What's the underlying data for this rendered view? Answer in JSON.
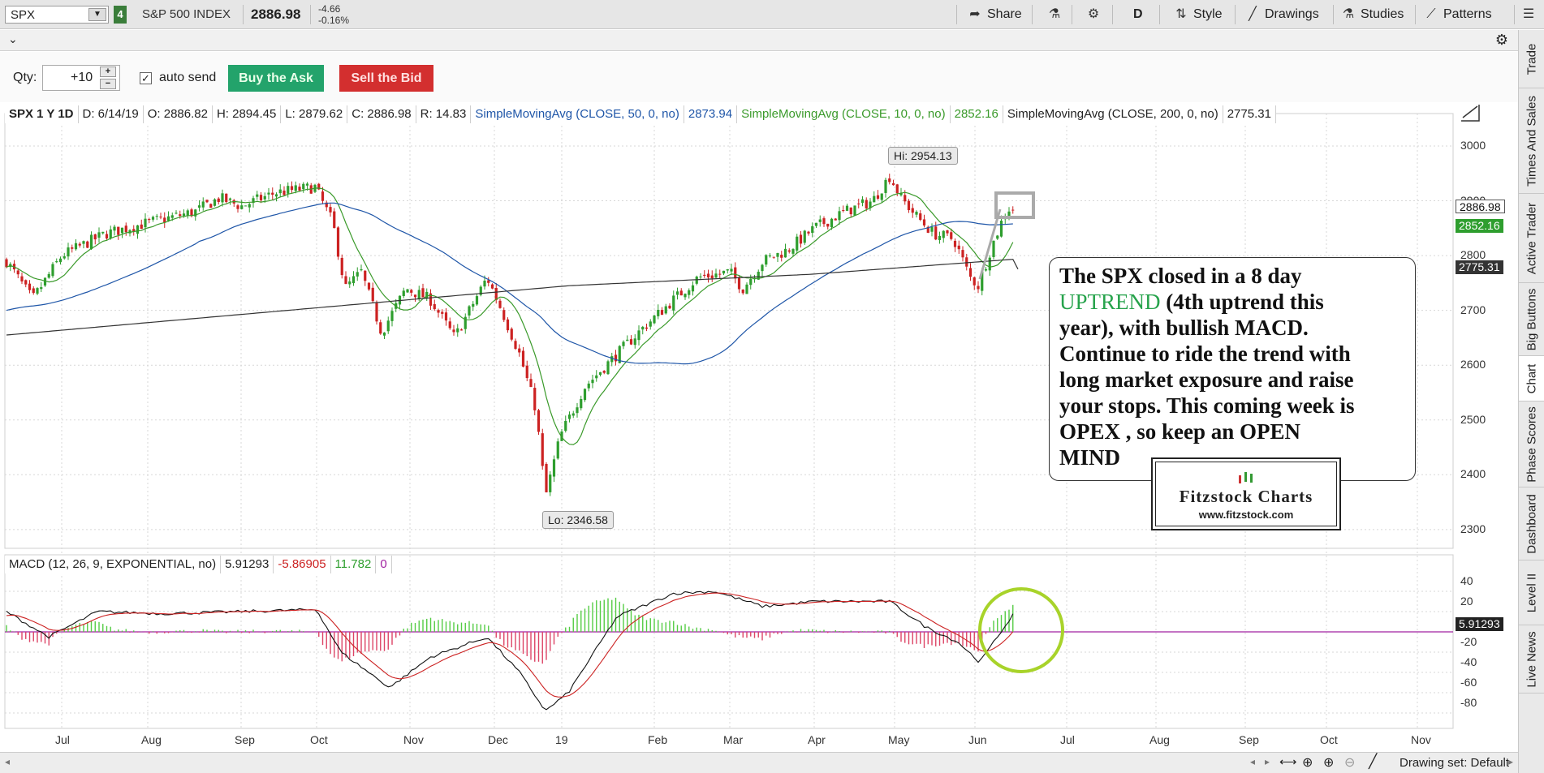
{
  "toolbar": {
    "symbol": "SPX",
    "link_number": "4",
    "instrument_name": "S&P 500 INDEX",
    "last_price": "2886.98",
    "net_change": "-4.66",
    "pct_change": "-0.16%",
    "share_label": "Share",
    "timeframe_label": "D",
    "style_label": "Style",
    "drawings_label": "Drawings",
    "studies_label": "Studies",
    "patterns_label": "Patterns"
  },
  "order": {
    "qty_label": "Qty:",
    "qty_value": "+10",
    "auto_send_label": "auto send",
    "buy_label": "Buy the Ask",
    "sell_label": "Sell the Bid"
  },
  "header": {
    "symbol_period": "SPX 1 Y 1D",
    "date": "D: 6/14/19",
    "open": "O: 2886.82",
    "high": "H: 2894.45",
    "low": "L: 2879.62",
    "close": "C: 2886.98",
    "range": "R: 14.83",
    "sma50_label": "SimpleMovingAvg (CLOSE, 50, 0, no)",
    "sma50_value": "2873.94",
    "sma10_label": "SimpleMovingAvg (CLOSE, 10, 0, no)",
    "sma10_value": "2852.16",
    "sma200_label": "SimpleMovingAvg (CLOSE, 200, 0, no)",
    "sma200_value": "2775.31"
  },
  "macd_header": {
    "label": "MACD (12, 26, 9, EXPONENTIAL, no)",
    "value": "5.91293",
    "avg": "-5.86905",
    "diff": "11.782",
    "zero": "0"
  },
  "price_tags": {
    "close": "2886.98",
    "sma10": "2852.16",
    "sma200": "2775.31",
    "macd": "5.91293"
  },
  "callouts": {
    "high": "Hi: 2954.13",
    "low": "Lo: 2346.58"
  },
  "note": {
    "line1": "The SPX closed in a 8 day",
    "uptrend": "UPTREND",
    "line2_rest": " (4th uptrend this",
    "line3": "year), with bullish MACD.",
    "line4": "Continue to ride the trend with",
    "line5": "long market exposure and raise",
    "line6": "your stops.  This coming week is",
    "line7": "OPEX , so keep an OPEN",
    "line8": "MIND"
  },
  "logo": {
    "title": "Fitzstock Charts",
    "url": "www.fitzstock.com"
  },
  "price_axis": [
    "3000",
    "2900",
    "2800",
    "2700",
    "2600",
    "2500",
    "2400",
    "2300"
  ],
  "macd_axis": [
    "40",
    "20",
    "0",
    "-20",
    "-40",
    "-60",
    "-80"
  ],
  "months": [
    "Jul",
    "Aug",
    "Sep",
    "Oct",
    "Nov",
    "Dec",
    "19",
    "Feb",
    "Mar",
    "Apr",
    "May",
    "Jun",
    "Jul",
    "Aug",
    "Sep",
    "Oct",
    "Nov"
  ],
  "side_tabs": [
    "Trade",
    "Times And Sales",
    "Active Trader",
    "Big Buttons",
    "Chart",
    "Phase Scores",
    "Dashboard",
    "Level II",
    "Live News"
  ],
  "bottom": {
    "drawing_set": "Drawing set: Default"
  },
  "colors": {
    "sma50": "#1f56a8",
    "sma10": "#3a9a2a",
    "sma200": "#333333",
    "up_candle": "#2e9e2e",
    "down_candle": "#cc2222",
    "macd_line": "#111111",
    "macd_avg": "#cc2222",
    "circle": "#a8d32a"
  },
  "chart_data": {
    "type": "candlestick",
    "title": "",
    "price_ylim": [
      2280,
      3050
    ],
    "price_approx": [
      {
        "month": "Jun-18",
        "close": 2760
      },
      {
        "month": "Jul",
        "close": 2815
      },
      {
        "month": "Aug",
        "close": 2900
      },
      {
        "month": "Sep",
        "close": 2930
      },
      {
        "month": "Oct",
        "close": 2720
      },
      {
        "month": "Nov",
        "close": 2730
      },
      {
        "month": "Dec",
        "close": 2430
      },
      {
        "month": "19",
        "close": 2510
      },
      {
        "month": "Feb",
        "close": 2740
      },
      {
        "month": "Mar",
        "close": 2820
      },
      {
        "month": "Apr",
        "close": 2930
      },
      {
        "month": "May",
        "close": 2752
      },
      {
        "month": "Jun",
        "close": 2887
      }
    ],
    "macd_ylim": [
      -80,
      45
    ]
  }
}
